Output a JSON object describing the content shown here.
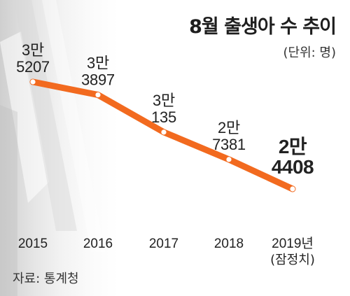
{
  "title": "8월 출생아 수 추이",
  "unit": "(단위: 명)",
  "source": "자료: 통계청",
  "colors": {
    "line": "#f26a1f",
    "marker_fill": "#ffffff",
    "text": "#222222"
  },
  "chart_data": {
    "type": "line",
    "categories": [
      "2015",
      "2016",
      "2017",
      "2018",
      "2019년"
    ],
    "category_notes": [
      "",
      "",
      "",
      "",
      "(잠정치)"
    ],
    "values": [
      35207,
      33897,
      30135,
      27381,
      24408
    ],
    "value_labels": [
      [
        "3만",
        "5207"
      ],
      [
        "3만",
        "3897"
      ],
      [
        "3만",
        "135"
      ],
      [
        "2만",
        "7381"
      ],
      [
        "2만",
        "4408"
      ]
    ],
    "highlight_last": true,
    "title": "8월 출생아 수 추이",
    "unit": "(단위: 명)",
    "grid": false,
    "legend": "none"
  }
}
